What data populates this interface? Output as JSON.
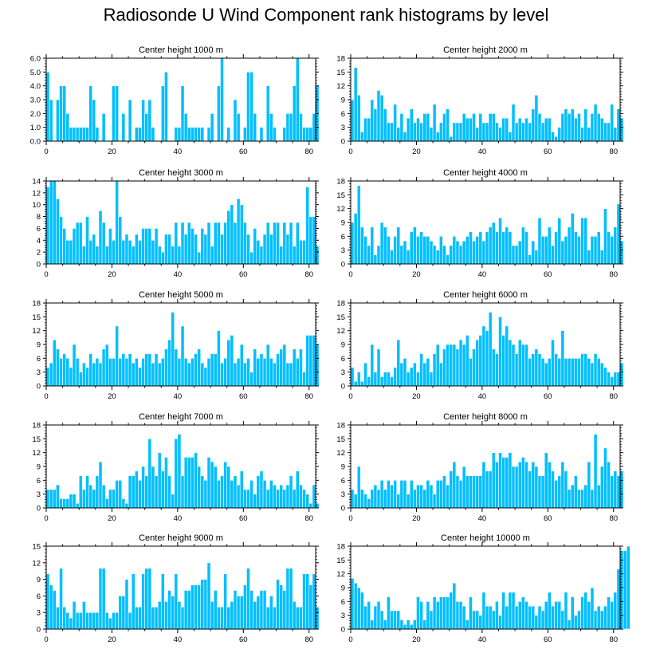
{
  "title": "Radiosonde U Wind Component rank histograms by level",
  "colors": {
    "bar": "#00bfff",
    "bar_edge": "#ffffff",
    "axis": "#000000"
  },
  "chart_data": [
    {
      "type": "bar",
      "title": "Center height 1000 m",
      "ylim": [
        0,
        6
      ],
      "yticks": [
        "0.0",
        "1.0",
        "2.0",
        "3.0",
        "4.0",
        "5.0",
        "6.0"
      ],
      "xlim": [
        0,
        82
      ],
      "xticks": [
        0,
        20,
        40,
        60,
        80
      ],
      "values": [
        5,
        3,
        0,
        3,
        4,
        4,
        2,
        1,
        1,
        1,
        1,
        1,
        1,
        4,
        3,
        1,
        0,
        2,
        0,
        0,
        4,
        4,
        0,
        2,
        0,
        3,
        0,
        1,
        1,
        3,
        2,
        3,
        1,
        0,
        0,
        4,
        5,
        0,
        0,
        1,
        1,
        4,
        2,
        1,
        1,
        1,
        1,
        1,
        0,
        1,
        2,
        0,
        4,
        6,
        0,
        1,
        0,
        3,
        2,
        0,
        1,
        5,
        5,
        2,
        0,
        1,
        0,
        4,
        2,
        1,
        0,
        0,
        1,
        2,
        2,
        4,
        6,
        2,
        1,
        1,
        1,
        2,
        4
      ]
    },
    {
      "type": "bar",
      "title": "Center height 2000 m",
      "ylim": [
        0,
        18
      ],
      "yticks": [
        "0",
        "3",
        "6",
        "9",
        "12",
        "15",
        "18"
      ],
      "xlim": [
        0,
        82
      ],
      "xticks": [
        0,
        20,
        40,
        60,
        80
      ],
      "values": [
        9,
        16,
        10,
        2,
        5,
        5,
        9,
        7,
        11,
        10,
        7,
        4,
        4,
        8,
        3,
        6,
        2,
        5,
        7,
        4,
        5,
        4,
        6,
        6,
        3,
        8,
        2,
        4,
        6,
        7,
        1,
        4,
        4,
        4,
        6,
        5,
        5,
        6,
        3,
        6,
        4,
        4,
        6,
        6,
        4,
        3,
        5,
        5,
        2,
        8,
        4,
        5,
        4,
        5,
        4,
        7,
        10,
        6,
        4,
        5,
        5,
        2,
        1,
        3,
        6,
        7,
        6,
        7,
        5,
        6,
        3,
        7,
        3,
        6,
        8,
        6,
        5,
        4,
        4,
        8,
        3,
        7,
        5
      ]
    },
    {
      "type": "bar",
      "title": "Center height 3000 m",
      "ylim": [
        0,
        14
      ],
      "yticks": [
        "0",
        "2",
        "4",
        "6",
        "8",
        "10",
        "12",
        "14"
      ],
      "xlim": [
        0,
        82
      ],
      "xticks": [
        0,
        20,
        40,
        60,
        80
      ],
      "values": [
        13,
        14,
        14,
        11,
        8,
        6,
        4,
        4,
        6,
        7,
        7,
        3,
        8,
        4,
        5,
        3,
        9,
        7,
        3,
        6,
        4,
        14,
        8,
        4,
        5,
        4,
        3,
        5,
        4,
        6,
        6,
        6,
        4,
        6,
        3,
        2,
        5,
        5,
        3,
        7,
        3,
        7,
        5,
        7,
        6,
        5,
        2,
        6,
        5,
        7,
        3,
        7,
        7,
        5,
        7,
        9,
        10,
        7,
        11,
        10,
        7,
        5,
        2,
        6,
        4,
        3,
        5,
        7,
        5,
        7,
        7,
        3,
        7,
        5,
        7,
        3,
        7,
        4,
        4,
        13,
        8,
        8,
        3
      ]
    },
    {
      "type": "bar",
      "title": "Center height 4000 m",
      "ylim": [
        0,
        18
      ],
      "yticks": [
        "0",
        "3",
        "6",
        "9",
        "12",
        "15",
        "18"
      ],
      "xlim": [
        0,
        82
      ],
      "xticks": [
        0,
        20,
        40,
        60,
        80
      ],
      "values": [
        9,
        11,
        17,
        8,
        6,
        4,
        8,
        2,
        4,
        9,
        8,
        6,
        3,
        6,
        8,
        4,
        5,
        3,
        7,
        8,
        6,
        7,
        6,
        6,
        5,
        4,
        3,
        6,
        4,
        2,
        4,
        6,
        5,
        4,
        5,
        6,
        7,
        5,
        6,
        7,
        5,
        7,
        8,
        9,
        7,
        10,
        7,
        8,
        7,
        4,
        4,
        5,
        8,
        7,
        2,
        5,
        3,
        10,
        6,
        6,
        8,
        4,
        7,
        10,
        5,
        6,
        8,
        11,
        7,
        6,
        10,
        10,
        3,
        6,
        6,
        7,
        3,
        12,
        7,
        6,
        8,
        13,
        5
      ]
    },
    {
      "type": "bar",
      "title": "Center height 5000 m",
      "ylim": [
        0,
        18
      ],
      "yticks": [
        "0",
        "3",
        "6",
        "9",
        "12",
        "15",
        "18"
      ],
      "xlim": [
        0,
        82
      ],
      "xticks": [
        0,
        20,
        40,
        60,
        80
      ],
      "values": [
        4,
        5,
        10,
        8,
        6,
        7,
        6,
        4,
        9,
        6,
        3,
        5,
        4,
        7,
        5,
        6,
        5,
        8,
        9,
        6,
        6,
        13,
        6,
        7,
        6,
        7,
        5,
        6,
        4,
        6,
        7,
        7,
        5,
        7,
        5,
        6,
        8,
        10,
        16,
        8,
        6,
        13,
        6,
        5,
        6,
        7,
        8,
        5,
        4,
        6,
        7,
        7,
        12,
        5,
        6,
        10,
        11,
        5,
        6,
        9,
        5,
        6,
        3,
        8,
        6,
        7,
        6,
        9,
        6,
        5,
        7,
        8,
        9,
        5,
        5,
        8,
        6,
        8,
        3,
        11,
        11,
        11,
        9
      ]
    },
    {
      "type": "bar",
      "title": "Center height 6000 m",
      "ylim": [
        0,
        18
      ],
      "yticks": [
        "0",
        "3",
        "6",
        "9",
        "12",
        "15",
        "18"
      ],
      "xlim": [
        0,
        82
      ],
      "xticks": [
        0,
        20,
        40,
        60,
        80
      ],
      "values": [
        4,
        1,
        3,
        1,
        5,
        2,
        9,
        3,
        8,
        2,
        3,
        3,
        2,
        4,
        10,
        5,
        6,
        3,
        4,
        5,
        3,
        7,
        5,
        6,
        3,
        7,
        9,
        5,
        8,
        9,
        9,
        9,
        8,
        10,
        9,
        11,
        6,
        8,
        10,
        11,
        13,
        12,
        16,
        8,
        7,
        15,
        11,
        13,
        10,
        9,
        7,
        10,
        9,
        9,
        6,
        7,
        8,
        7,
        6,
        5,
        6,
        10,
        7,
        6,
        12,
        6,
        6,
        6,
        6,
        6,
        7,
        7,
        6,
        5,
        7,
        6,
        5,
        4,
        3,
        2,
        3,
        3,
        5
      ]
    },
    {
      "type": "bar",
      "title": "Center height 7000 m",
      "ylim": [
        0,
        18
      ],
      "yticks": [
        "0",
        "3",
        "6",
        "9",
        "12",
        "15",
        "18"
      ],
      "xlim": [
        0,
        82
      ],
      "xticks": [
        0,
        20,
        40,
        60,
        80
      ],
      "values": [
        4,
        4,
        4,
        5,
        2,
        2,
        2,
        3,
        3,
        1,
        7,
        4,
        7,
        5,
        4,
        7,
        10,
        5,
        2,
        4,
        4,
        6,
        6,
        2,
        1,
        7,
        7,
        8,
        6,
        9,
        7,
        15,
        9,
        7,
        12,
        8,
        11,
        7,
        3,
        15,
        16,
        7,
        11,
        11,
        11,
        12,
        9,
        7,
        6,
        11,
        10,
        9,
        6,
        7,
        10,
        9,
        6,
        7,
        5,
        8,
        4,
        4,
        6,
        3,
        7,
        8,
        6,
        4,
        6,
        5,
        4,
        5,
        4,
        5,
        7,
        4,
        8,
        5,
        4,
        3,
        1,
        5,
        1
      ]
    },
    {
      "type": "bar",
      "title": "Center height 8000 m",
      "ylim": [
        0,
        18
      ],
      "yticks": [
        "0",
        "3",
        "6",
        "9",
        "12",
        "15",
        "18"
      ],
      "xlim": [
        0,
        82
      ],
      "xticks": [
        0,
        20,
        40,
        60,
        80
      ],
      "values": [
        4,
        3,
        9,
        4,
        3,
        2,
        4,
        5,
        4,
        6,
        4,
        6,
        5,
        6,
        3,
        6,
        6,
        3,
        6,
        4,
        5,
        5,
        4,
        6,
        5,
        3,
        6,
        6,
        7,
        5,
        8,
        10,
        7,
        6,
        9,
        7,
        7,
        7,
        7,
        7,
        10,
        8,
        8,
        12,
        10,
        12,
        11,
        11,
        12,
        9,
        9,
        10,
        11,
        10,
        8,
        10,
        9,
        7,
        7,
        12,
        10,
        8,
        6,
        7,
        10,
        8,
        4,
        5,
        7,
        4,
        4,
        5,
        10,
        4,
        16,
        5,
        9,
        13,
        10,
        7,
        8,
        7,
        8
      ]
    },
    {
      "type": "bar",
      "title": "Center height 9000 m",
      "ylim": [
        0,
        15
      ],
      "yticks": [
        "0",
        "3",
        "6",
        "9",
        "12",
        "15"
      ],
      "xlim": [
        0,
        82
      ],
      "xticks": [
        0,
        20,
        40,
        60,
        80
      ],
      "values": [
        10,
        8,
        7,
        4,
        11,
        4,
        3,
        2,
        5,
        3,
        3,
        5,
        3,
        3,
        3,
        3,
        11,
        11,
        3,
        2,
        3,
        3,
        6,
        6,
        9,
        3,
        10,
        4,
        4,
        10,
        11,
        11,
        4,
        4,
        5,
        10,
        5,
        7,
        6,
        10,
        5,
        4,
        7,
        7,
        8,
        8,
        8,
        9,
        9,
        12,
        5,
        7,
        4,
        4,
        10,
        4,
        5,
        7,
        6,
        6,
        8,
        11,
        7,
        5,
        6,
        7,
        7,
        4,
        6,
        4,
        9,
        8,
        7,
        11,
        11,
        5,
        4,
        4,
        10,
        10,
        8,
        10,
        4
      ]
    },
    {
      "type": "bar",
      "title": "Center height 10000 m",
      "ylim": [
        0,
        18
      ],
      "yticks": [
        "0",
        "3",
        "6",
        "9",
        "12",
        "15",
        "18"
      ],
      "xlim": [
        0,
        82
      ],
      "xticks": [
        0,
        20,
        40,
        60,
        80
      ],
      "values": [
        11,
        10,
        9,
        8,
        5,
        6,
        2,
        5,
        6,
        4,
        2,
        7,
        4,
        4,
        4,
        2,
        1,
        2,
        1,
        2,
        7,
        6,
        2,
        6,
        4,
        7,
        6,
        7,
        7,
        7,
        8,
        10,
        6,
        6,
        5,
        2,
        7,
        4,
        4,
        3,
        8,
        5,
        5,
        4,
        6,
        3,
        8,
        5,
        8,
        8,
        5,
        6,
        7,
        6,
        5,
        5,
        3,
        5,
        4,
        6,
        8,
        5,
        6,
        6,
        4,
        8,
        2,
        7,
        3,
        4,
        7,
        8,
        6,
        9,
        4,
        5,
        4,
        5,
        7,
        6,
        8,
        13,
        17,
        17,
        18
      ]
    }
  ]
}
